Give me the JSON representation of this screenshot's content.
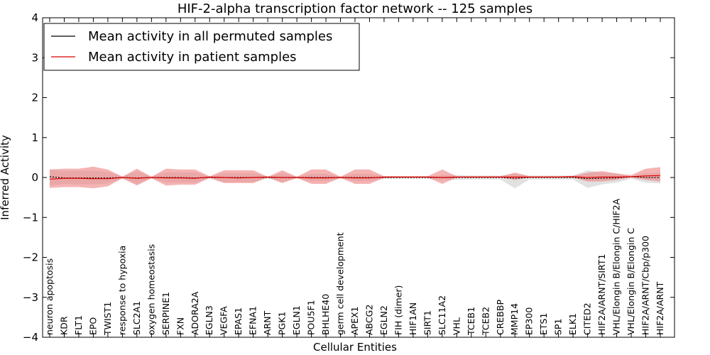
{
  "chart_data": {
    "type": "line",
    "title": "HIF-2-alpha transcription factor network -- 125 samples",
    "xlabel": "Cellular Entities",
    "ylabel": "Inferred Activity",
    "ylim": [
      -4,
      4
    ],
    "yticks": [
      4,
      3,
      2,
      1,
      0,
      -1,
      -2,
      -3,
      -4
    ],
    "ytick_labels": [
      "4",
      "3",
      "2",
      "1",
      "0",
      "−1",
      "−2",
      "−3",
      "−4"
    ],
    "legend_position": "top-left",
    "grid": false,
    "categories": [
      "neuron apoptosis",
      "KDR",
      "FLT1",
      "EPO",
      "TWIST1",
      "response to hypoxia",
      "SLC2A1",
      "oxygen homeostasis",
      "SERPINE1",
      "FXN",
      "ADORA2A",
      "EGLN3",
      "VEGFA",
      "EPAS1",
      "EFNA1",
      "ARNT",
      "PGK1",
      "EGLN1",
      "POU5F1",
      "BHLHE40",
      "germ cell development",
      "APEX1",
      "ABCG2",
      "EGLN2",
      "FIH (dimer)",
      "HIF1AN",
      "SIRT1",
      "SLC11A2",
      "VHL",
      "TCEB1",
      "TCEB2",
      "CREBBP",
      "MMP14",
      "EP300",
      "ETS1",
      "SP1",
      "ELK1",
      "CITED2",
      "HIF2A/ARNT/SIRT1",
      "VHL/Elongin B/Elongin C/HIF2A",
      "VHL/Elongin B/Elongin C",
      "HIF2A/ARNT/Cbp/p300",
      "HIF2A/ARNT"
    ],
    "series": [
      {
        "name": "Mean activity in all permuted samples",
        "color": "#000000",
        "band_color": "#c8c8c8",
        "values": [
          0.02,
          -0.01,
          -0.01,
          -0.01,
          -0.01,
          0.0,
          -0.01,
          0.0,
          0.0,
          0.0,
          -0.01,
          0.0,
          0.0,
          0.0,
          0.0,
          0.0,
          0.0,
          0.0,
          0.0,
          0.0,
          0.0,
          0.0,
          0.0,
          0.0,
          0.0,
          0.0,
          0.0,
          0.0,
          0.0,
          0.0,
          0.0,
          0.0,
          -0.02,
          0.0,
          0.0,
          0.0,
          0.0,
          -0.03,
          -0.02,
          -0.01,
          0.02,
          0.0,
          0.0
        ],
        "lower": [
          -0.2,
          -0.16,
          -0.17,
          -0.17,
          -0.15,
          -0.03,
          -0.16,
          -0.02,
          -0.13,
          -0.13,
          -0.13,
          -0.02,
          -0.11,
          -0.11,
          -0.11,
          -0.02,
          -0.11,
          -0.02,
          -0.09,
          -0.09,
          -0.02,
          -0.09,
          -0.09,
          -0.03,
          -0.03,
          -0.03,
          -0.03,
          -0.06,
          -0.06,
          -0.05,
          -0.05,
          -0.05,
          -0.27,
          -0.05,
          -0.05,
          -0.05,
          -0.05,
          -0.26,
          -0.17,
          -0.13,
          -0.03,
          -0.13,
          -0.15
        ],
        "upper": [
          0.2,
          0.16,
          0.17,
          0.17,
          0.15,
          0.03,
          0.16,
          0.02,
          0.13,
          0.13,
          0.13,
          0.02,
          0.11,
          0.11,
          0.11,
          0.02,
          0.11,
          0.02,
          0.09,
          0.09,
          0.02,
          0.09,
          0.09,
          0.03,
          0.03,
          0.03,
          0.03,
          0.06,
          0.06,
          0.05,
          0.05,
          0.05,
          0.1,
          0.05,
          0.05,
          0.05,
          0.05,
          0.18,
          0.12,
          0.1,
          0.03,
          0.1,
          0.12
        ]
      },
      {
        "name": "Mean activity in patient samples",
        "color": "#dd0000",
        "band_color": "#f08080",
        "values": [
          -0.04,
          -0.02,
          -0.02,
          -0.03,
          -0.03,
          0.0,
          -0.02,
          0.0,
          -0.01,
          -0.01,
          -0.02,
          0.01,
          0.0,
          -0.01,
          0.0,
          0.01,
          0.0,
          0.0,
          -0.01,
          -0.01,
          0.0,
          -0.01,
          -0.01,
          0.01,
          0.01,
          0.01,
          0.01,
          0.0,
          0.01,
          0.01,
          0.01,
          0.01,
          0.01,
          0.01,
          0.01,
          0.01,
          0.02,
          0.0,
          0.01,
          0.01,
          0.02,
          0.04,
          0.05
        ],
        "lower": [
          -0.26,
          -0.24,
          -0.24,
          -0.27,
          -0.22,
          -0.02,
          -0.2,
          -0.02,
          -0.2,
          -0.18,
          -0.18,
          -0.01,
          -0.14,
          -0.14,
          -0.14,
          0.0,
          -0.14,
          -0.01,
          -0.16,
          -0.16,
          -0.01,
          -0.16,
          -0.16,
          -0.01,
          0.0,
          0.0,
          0.0,
          -0.16,
          0.0,
          0.0,
          0.0,
          0.0,
          -0.06,
          0.0,
          0.0,
          0.0,
          0.0,
          -0.1,
          -0.1,
          -0.06,
          0.0,
          -0.06,
          -0.1
        ],
        "upper": [
          0.2,
          0.22,
          0.22,
          0.27,
          0.2,
          0.02,
          0.22,
          0.02,
          0.22,
          0.2,
          0.2,
          0.03,
          0.18,
          0.18,
          0.18,
          0.02,
          0.18,
          0.02,
          0.2,
          0.2,
          0.02,
          0.2,
          0.2,
          0.03,
          0.03,
          0.03,
          0.03,
          0.2,
          0.03,
          0.03,
          0.03,
          0.03,
          0.12,
          0.03,
          0.03,
          0.03,
          0.04,
          0.12,
          0.16,
          0.1,
          0.06,
          0.22,
          0.26
        ]
      }
    ]
  }
}
